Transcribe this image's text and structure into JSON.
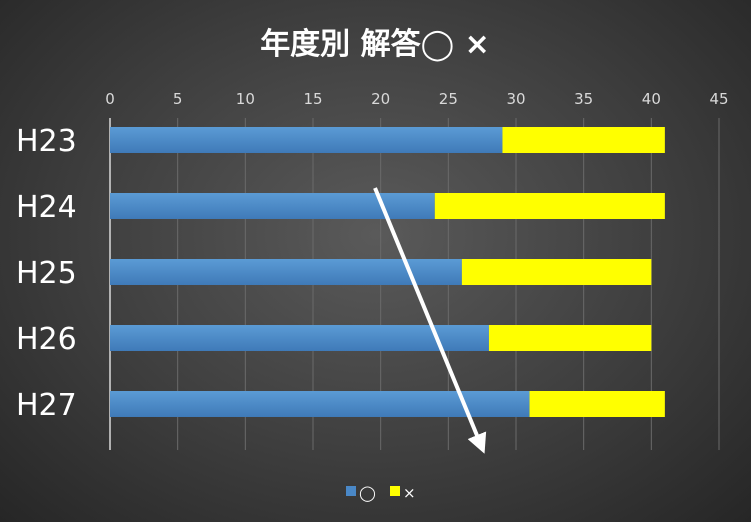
{
  "chart_data": {
    "type": "bar",
    "orientation": "horizontal",
    "stacked": true,
    "title": "年度別 解答◯ ×",
    "categories": [
      "H23",
      "H24",
      "H25",
      "H26",
      "H27"
    ],
    "series": [
      {
        "name": "◯",
        "values": [
          29,
          24,
          26,
          28,
          31
        ],
        "color": "#4a88c7"
      },
      {
        "name": "×",
        "values": [
          12,
          17,
          14,
          12,
          10
        ],
        "color": "#ffff00"
      }
    ],
    "xlim": [
      0,
      45
    ],
    "xticks": [
      0,
      5,
      10,
      15,
      20,
      25,
      30,
      35,
      40,
      45
    ],
    "grid": true,
    "axis_position": "top",
    "legend": "bottom",
    "annotation": "arrow"
  }
}
